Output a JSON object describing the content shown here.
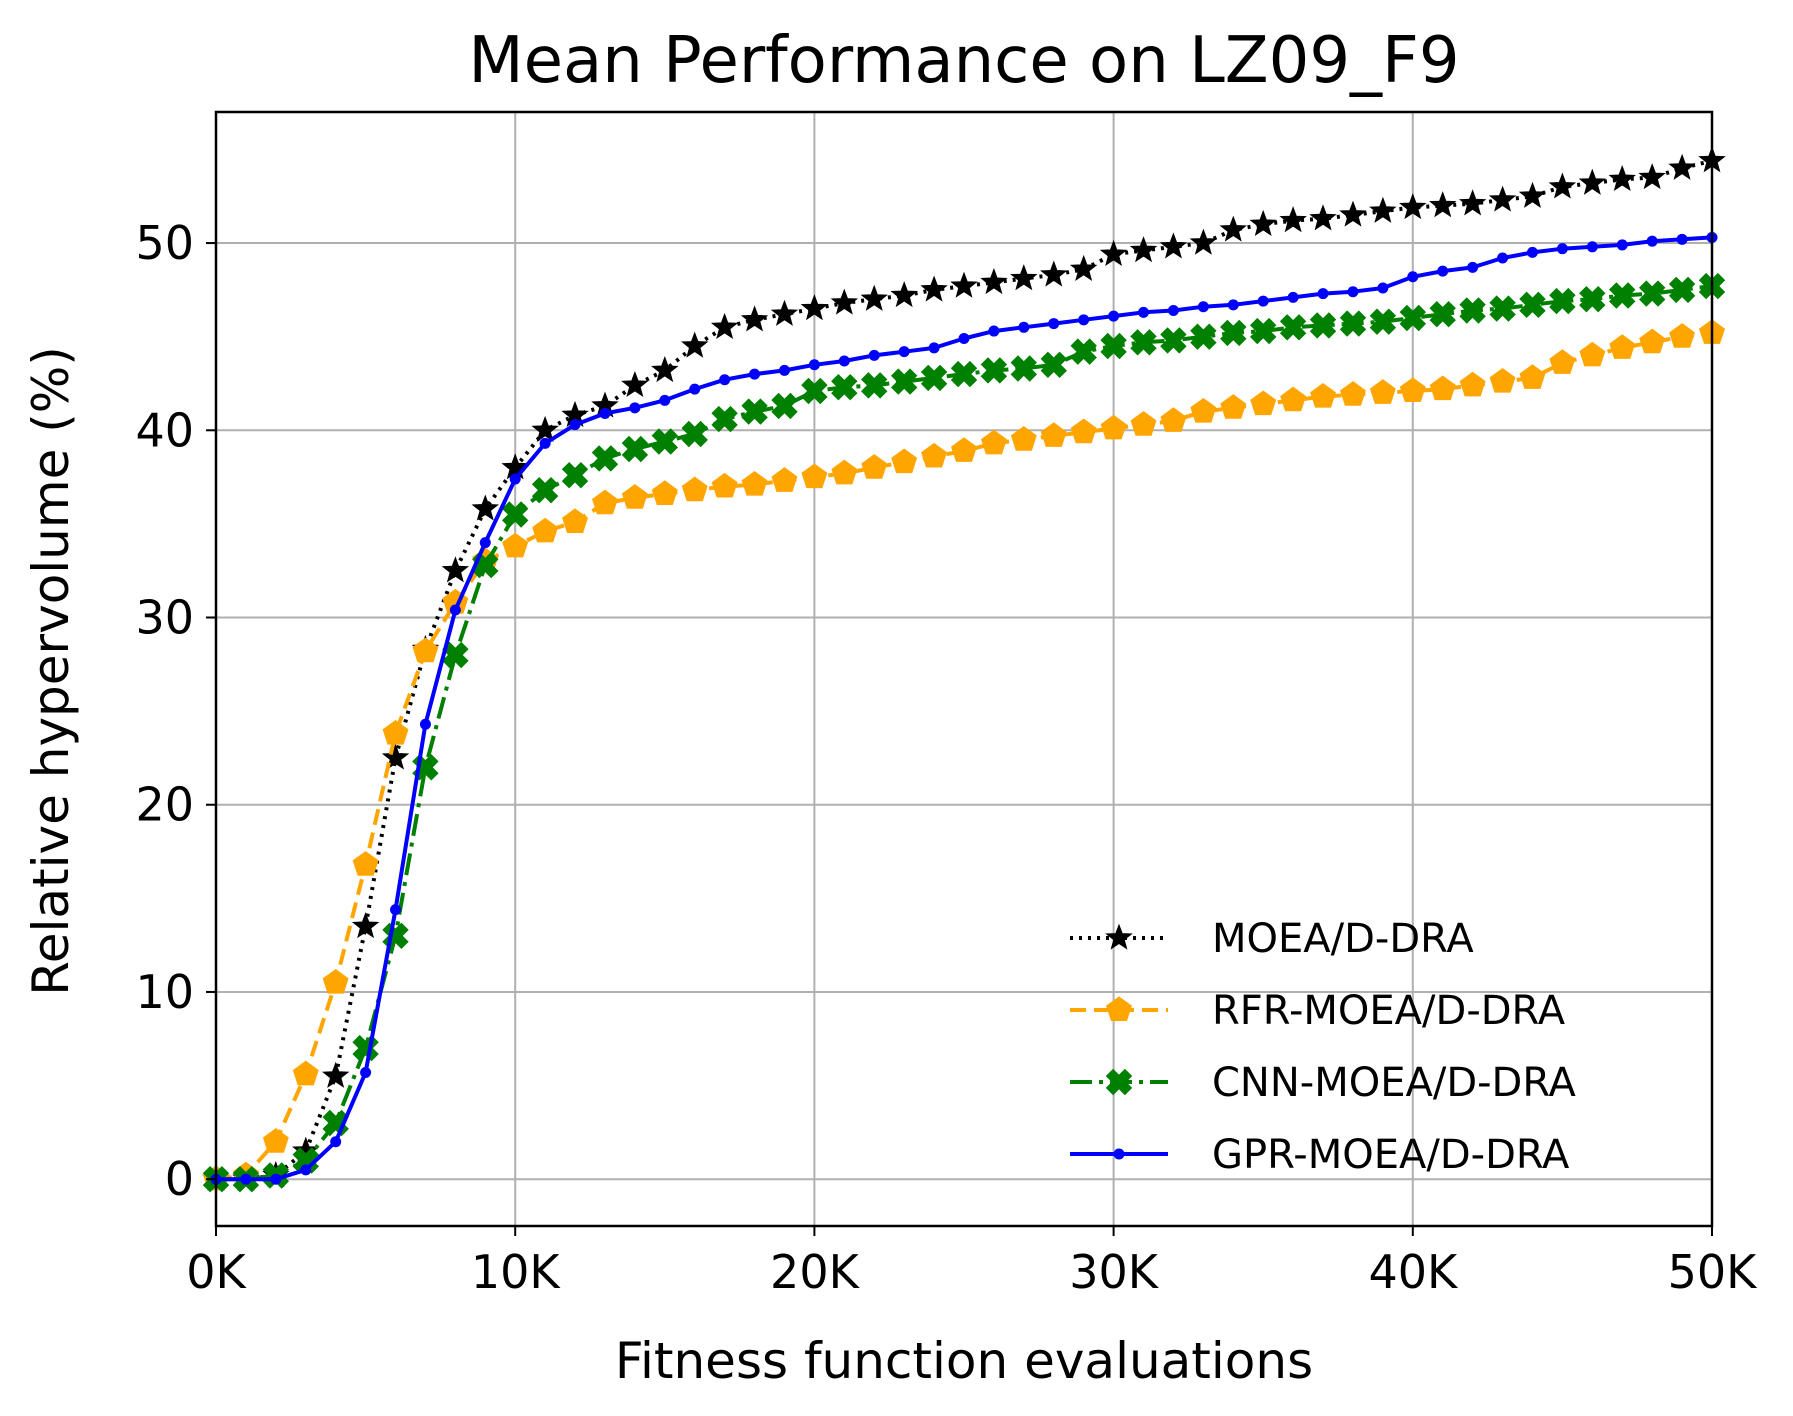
{
  "chart_data": {
    "type": "line",
    "title": "Mean Performance on LZ09_F9",
    "xlabel": "Fitness function evaluations",
    "ylabel": "Relative hypervolume (%)",
    "xlim": [
      0,
      50000
    ],
    "ylim": [
      -2.5,
      57
    ],
    "grid": true,
    "legend_position": "bottom-right",
    "x_ticks": [
      0,
      10000,
      20000,
      30000,
      40000,
      50000
    ],
    "x_tick_labels": [
      "0K",
      "10K",
      "20K",
      "30K",
      "40K",
      "50K"
    ],
    "y_ticks": [
      0,
      10,
      20,
      30,
      40,
      50
    ],
    "y_tick_labels": [
      "0",
      "10",
      "20",
      "30",
      "40",
      "50"
    ],
    "x": [
      0,
      1000,
      2000,
      3000,
      4000,
      5000,
      6000,
      7000,
      8000,
      9000,
      10000,
      11000,
      12000,
      13000,
      14000,
      15000,
      16000,
      17000,
      18000,
      19000,
      20000,
      21000,
      22000,
      23000,
      24000,
      25000,
      26000,
      27000,
      28000,
      29000,
      30000,
      31000,
      32000,
      33000,
      34000,
      35000,
      36000,
      37000,
      38000,
      39000,
      40000,
      41000,
      42000,
      43000,
      44000,
      45000,
      46000,
      47000,
      48000,
      49000,
      50000
    ],
    "series": [
      {
        "name": "MOEA/D-DRA",
        "color": "#000000",
        "line_style": "dotted",
        "marker": "star",
        "values": [
          0.0,
          0.0,
          0.2,
          1.5,
          5.5,
          13.5,
          22.5,
          28.3,
          32.5,
          35.8,
          38.0,
          40.0,
          40.8,
          41.3,
          42.4,
          43.2,
          44.5,
          45.5,
          45.9,
          46.2,
          46.5,
          46.8,
          47.0,
          47.2,
          47.5,
          47.7,
          47.9,
          48.1,
          48.3,
          48.6,
          49.4,
          49.6,
          49.8,
          50.0,
          50.7,
          51.0,
          51.2,
          51.3,
          51.5,
          51.7,
          51.9,
          52.0,
          52.1,
          52.3,
          52.5,
          53.0,
          53.2,
          53.4,
          53.5,
          54.0,
          54.4
        ]
      },
      {
        "name": "RFR-MOEA/D-DRA",
        "color": "#ffa500",
        "line_style": "dashed",
        "marker": "pentagon",
        "values": [
          0.0,
          0.2,
          2.0,
          5.6,
          10.5,
          16.8,
          23.8,
          28.2,
          30.8,
          33.0,
          33.8,
          34.6,
          35.1,
          36.1,
          36.4,
          36.6,
          36.8,
          37.0,
          37.1,
          37.3,
          37.5,
          37.7,
          38.0,
          38.3,
          38.6,
          38.9,
          39.3,
          39.5,
          39.7,
          39.9,
          40.1,
          40.3,
          40.5,
          41.0,
          41.2,
          41.4,
          41.6,
          41.8,
          41.9,
          42.0,
          42.1,
          42.2,
          42.4,
          42.6,
          42.8,
          43.6,
          44.0,
          44.4,
          44.7,
          45.0,
          45.2
        ]
      },
      {
        "name": "CNN-MOEA/D-DRA",
        "color": "#008000",
        "line_style": "dashdot",
        "marker": "x-filled",
        "values": [
          0.0,
          0.0,
          0.2,
          1.0,
          3.0,
          7.0,
          13.0,
          22.0,
          28.0,
          32.8,
          35.5,
          36.8,
          37.6,
          38.5,
          39.0,
          39.4,
          39.8,
          40.6,
          41.0,
          41.3,
          42.1,
          42.3,
          42.4,
          42.6,
          42.8,
          43.0,
          43.2,
          43.3,
          43.5,
          44.2,
          44.5,
          44.7,
          44.8,
          45.0,
          45.2,
          45.3,
          45.5,
          45.6,
          45.7,
          45.8,
          46.0,
          46.2,
          46.4,
          46.5,
          46.7,
          46.9,
          47.0,
          47.2,
          47.3,
          47.5,
          47.7
        ]
      },
      {
        "name": "GPR-MOEA/D-DRA",
        "color": "#0000ff",
        "line_style": "solid",
        "marker": "dot",
        "values": [
          0.0,
          0.0,
          0.0,
          0.5,
          2.0,
          5.7,
          14.4,
          24.3,
          30.4,
          34.0,
          37.4,
          39.3,
          40.3,
          40.9,
          41.2,
          41.6,
          42.2,
          42.7,
          43.0,
          43.2,
          43.5,
          43.7,
          44.0,
          44.2,
          44.4,
          44.9,
          45.3,
          45.5,
          45.7,
          45.9,
          46.1,
          46.3,
          46.4,
          46.6,
          46.7,
          46.9,
          47.1,
          47.3,
          47.4,
          47.6,
          48.2,
          48.5,
          48.7,
          49.2,
          49.5,
          49.7,
          49.8,
          49.9,
          50.1,
          50.2,
          50.3
        ]
      }
    ]
  }
}
